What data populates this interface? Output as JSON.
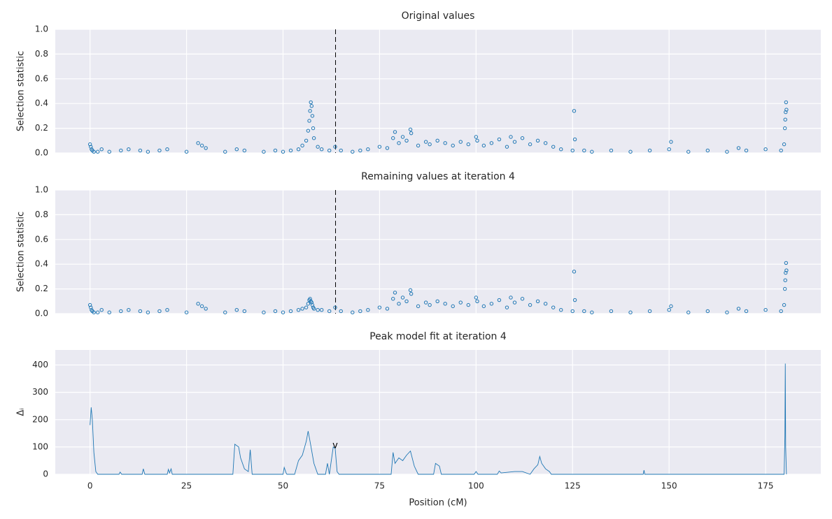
{
  "chart_data": [
    {
      "type": "scatter",
      "title": "Original values",
      "ylabel": "Selection statistic",
      "color": "#1f77b4",
      "grid": true,
      "xlim": [
        -9,
        189.3
      ],
      "ylim": [
        0,
        1
      ],
      "vline": 63.6,
      "xticks": [
        0,
        25,
        50,
        75,
        100,
        125,
        150,
        175
      ],
      "yticks": [
        {
          "value": 0,
          "label": "0.0"
        },
        {
          "value": 0.2,
          "label": "0.2"
        },
        {
          "value": 0.4,
          "label": "0.4"
        },
        {
          "value": 0.6,
          "label": "0.6"
        },
        {
          "value": 0.8,
          "label": "0.8"
        },
        {
          "value": 1,
          "label": "1.0"
        }
      ],
      "x": [
        0,
        0.2,
        0.4,
        0.6,
        1,
        2,
        3,
        5,
        8,
        10,
        13,
        15,
        18,
        20,
        25,
        28,
        29,
        30,
        35,
        38,
        40,
        45,
        48,
        50,
        52,
        54,
        55,
        56,
        56.5,
        56.8,
        57,
        57.2,
        57.4,
        57.6,
        57.8,
        58,
        59,
        60,
        62,
        63.5,
        65,
        68,
        70,
        72,
        75,
        77,
        78.5,
        79,
        80,
        81,
        82,
        83,
        83.2,
        85,
        87,
        88,
        90,
        92,
        94,
        96,
        98,
        100,
        100.3,
        102,
        104,
        106,
        108,
        109,
        110,
        112,
        114,
        116,
        118,
        120,
        122,
        125,
        125.4,
        125.6,
        128,
        130,
        135,
        140,
        145,
        150,
        150.5,
        155,
        160,
        165,
        168,
        170,
        175,
        179,
        179.8,
        180,
        180.1,
        180.2,
        180.3,
        180.4
      ],
      "values": [
        0.07,
        0.05,
        0.03,
        0.02,
        0.01,
        0.01,
        0.03,
        0.01,
        0.02,
        0.03,
        0.02,
        0.01,
        0.02,
        0.03,
        0.01,
        0.08,
        0.06,
        0.04,
        0.01,
        0.03,
        0.02,
        0.01,
        0.02,
        0.01,
        0.02,
        0.03,
        0.06,
        0.1,
        0.18,
        0.26,
        0.34,
        0.41,
        0.38,
        0.3,
        0.2,
        0.12,
        0.05,
        0.03,
        0.02,
        0.05,
        0.02,
        0.01,
        0.02,
        0.03,
        0.05,
        0.04,
        0.12,
        0.17,
        0.08,
        0.13,
        0.1,
        0.19,
        0.16,
        0.06,
        0.09,
        0.07,
        0.1,
        0.08,
        0.06,
        0.09,
        0.07,
        0.13,
        0.1,
        0.06,
        0.08,
        0.11,
        0.05,
        0.13,
        0.09,
        0.12,
        0.07,
        0.1,
        0.08,
        0.05,
        0.03,
        0.02,
        0.34,
        0.11,
        0.02,
        0.01,
        0.02,
        0.01,
        0.02,
        0.03,
        0.09,
        0.01,
        0.02,
        0.01,
        0.04,
        0.02,
        0.03,
        0.02,
        0.07,
        0.2,
        0.27,
        0.33,
        0.41,
        0.35
      ]
    },
    {
      "type": "scatter",
      "title": "Remaining values at iteration 4",
      "ylabel": "Selection statistic",
      "color": "#1f77b4",
      "grid": true,
      "xlim": [
        -9,
        189.3
      ],
      "ylim": [
        0,
        1
      ],
      "vline": 63.6,
      "xticks": [
        0,
        25,
        50,
        75,
        100,
        125,
        150,
        175
      ],
      "yticks": [
        {
          "value": 0,
          "label": "0.0"
        },
        {
          "value": 0.2,
          "label": "0.2"
        },
        {
          "value": 0.4,
          "label": "0.4"
        },
        {
          "value": 0.6,
          "label": "0.6"
        },
        {
          "value": 0.8,
          "label": "0.8"
        },
        {
          "value": 1,
          "label": "1.0"
        }
      ],
      "x": [
        0,
        0.2,
        0.4,
        0.6,
        1,
        2,
        3,
        5,
        8,
        10,
        13,
        15,
        18,
        20,
        25,
        28,
        29,
        30,
        35,
        38,
        40,
        45,
        48,
        50,
        52,
        54,
        55,
        56,
        56.5,
        56.8,
        57,
        57.2,
        57.4,
        57.6,
        57.8,
        58,
        59,
        60,
        62,
        63.5,
        65,
        68,
        70,
        72,
        75,
        77,
        78.5,
        79,
        80,
        81,
        82,
        83,
        83.2,
        85,
        87,
        88,
        90,
        92,
        94,
        96,
        98,
        100,
        100.3,
        102,
        104,
        106,
        108,
        109,
        110,
        112,
        114,
        116,
        118,
        120,
        122,
        125,
        125.4,
        125.6,
        128,
        130,
        135,
        140,
        145,
        150,
        150.5,
        155,
        160,
        165,
        168,
        170,
        175,
        179,
        179.8,
        180,
        180.1,
        180.2,
        180.3,
        180.4
      ],
      "values": [
        0.07,
        0.05,
        0.03,
        0.02,
        0.01,
        0.01,
        0.03,
        0.01,
        0.02,
        0.03,
        0.02,
        0.01,
        0.02,
        0.03,
        0.01,
        0.08,
        0.06,
        0.04,
        0.01,
        0.03,
        0.02,
        0.01,
        0.02,
        0.01,
        0.02,
        0.03,
        0.04,
        0.05,
        0.08,
        0.11,
        0.12,
        0.1,
        0.09,
        0.07,
        0.05,
        0.04,
        0.03,
        0.03,
        0.02,
        0.05,
        0.02,
        0.01,
        0.02,
        0.03,
        0.05,
        0.04,
        0.12,
        0.17,
        0.08,
        0.13,
        0.1,
        0.19,
        0.16,
        0.06,
        0.09,
        0.07,
        0.1,
        0.08,
        0.06,
        0.09,
        0.07,
        0.13,
        0.1,
        0.06,
        0.08,
        0.11,
        0.05,
        0.13,
        0.09,
        0.12,
        0.07,
        0.1,
        0.08,
        0.05,
        0.03,
        0.02,
        0.34,
        0.11,
        0.02,
        0.01,
        0.02,
        0.01,
        0.02,
        0.03,
        0.06,
        0.01,
        0.02,
        0.01,
        0.04,
        0.02,
        0.03,
        0.02,
        0.07,
        0.2,
        0.27,
        0.33,
        0.41,
        0.35
      ]
    },
    {
      "type": "line",
      "title": "Peak model fit at iteration 4",
      "ylabel": "Δᵢ",
      "xlabel": "Position (cM)",
      "color": "#1f77b4",
      "grid": true,
      "xlim": [
        -9,
        189.3
      ],
      "ylim": [
        0,
        455
      ],
      "xticks": [
        0,
        25,
        50,
        75,
        100,
        125,
        150,
        175
      ],
      "yticks": [
        0,
        100,
        200,
        300,
        400
      ],
      "annotation": {
        "text": "v",
        "x": 63.5,
        "y": 105
      },
      "x": [
        0,
        0.3,
        0.6,
        1,
        1.5,
        2,
        7.5,
        7.8,
        8.2,
        13.5,
        13.8,
        14.2,
        20,
        20.3,
        20.6,
        21,
        21.3,
        37,
        37.5,
        38.5,
        39,
        40,
        41,
        41.5,
        42,
        50,
        50.3,
        50.8,
        51,
        53,
        54,
        55,
        56,
        56.5,
        57,
        58,
        59,
        61,
        61.5,
        62,
        63,
        63.5,
        64,
        64.5,
        78,
        78.5,
        79,
        80,
        81,
        82,
        83,
        84,
        85,
        89,
        89.5,
        90.5,
        91,
        99.5,
        100,
        100.5,
        105.5,
        106,
        106.5,
        110,
        112,
        114,
        115,
        116,
        116.5,
        117,
        118,
        119,
        119.5,
        143.3,
        143.5,
        143.7,
        179.8,
        180,
        180.1,
        180.2,
        180.4
      ],
      "values": [
        180,
        245,
        200,
        80,
        10,
        0,
        0,
        8,
        0,
        0,
        20,
        0,
        0,
        18,
        5,
        20,
        0,
        0,
        110,
        100,
        60,
        20,
        10,
        90,
        0,
        0,
        25,
        5,
        0,
        0,
        50,
        70,
        120,
        158,
        120,
        40,
        0,
        0,
        40,
        0,
        100,
        95,
        10,
        0,
        0,
        80,
        40,
        60,
        50,
        70,
        85,
        30,
        0,
        0,
        40,
        30,
        0,
        0,
        10,
        0,
        0,
        12,
        5,
        10,
        10,
        0,
        20,
        35,
        65,
        40,
        20,
        10,
        0,
        0,
        15,
        0,
        0,
        140,
        405,
        100,
        0
      ]
    }
  ]
}
